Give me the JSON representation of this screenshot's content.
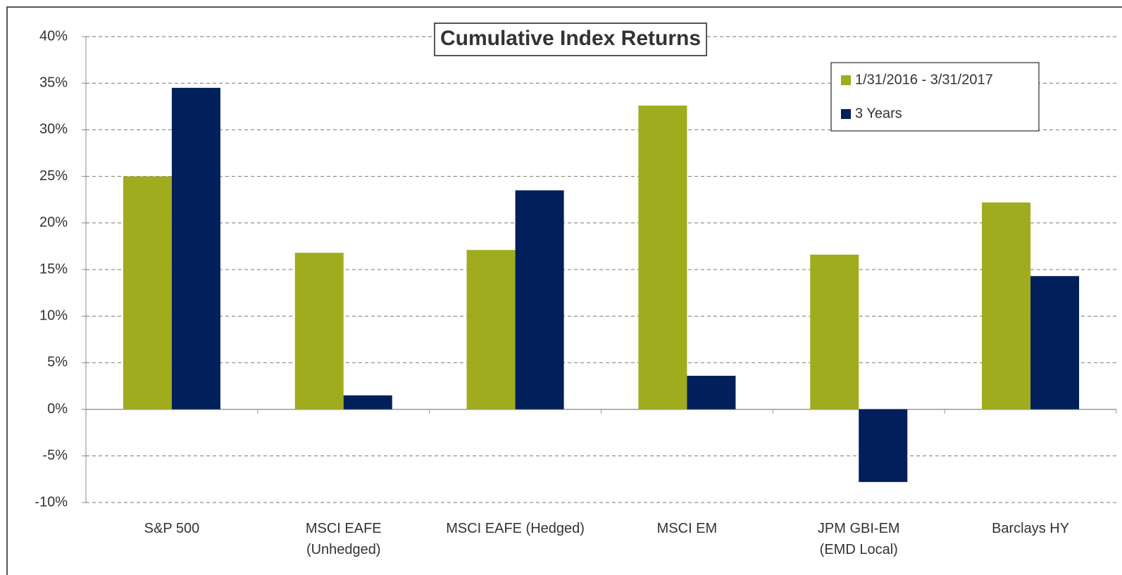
{
  "chart_data": {
    "type": "bar",
    "title": "Cumulative Index Returns",
    "categories": [
      "S&P 500",
      "MSCI EAFE\n(Unhedged)",
      "MSCI EAFE (Hedged)",
      "MSCI EM",
      "JPM GBI-EM\n(EMD Local)",
      "Barclays HY"
    ],
    "series": [
      {
        "name": "1/31/2016 - 3/31/2017",
        "color": "#a0ab1e",
        "values": [
          25.0,
          16.8,
          17.1,
          32.6,
          16.6,
          22.2
        ]
      },
      {
        "name": "3 Years",
        "color": "#001f5b",
        "values": [
          34.5,
          1.5,
          23.5,
          3.6,
          -7.8,
          14.3
        ]
      }
    ],
    "ylim": [
      -10,
      40
    ],
    "yticks": [
      {
        "value": -10,
        "label": "-10%"
      },
      {
        "value": -5,
        "label": "-5%"
      },
      {
        "value": 0,
        "label": "0%"
      },
      {
        "value": 5,
        "label": "5%"
      },
      {
        "value": 10,
        "label": "10%"
      },
      {
        "value": 15,
        "label": "15%"
      },
      {
        "value": 20,
        "label": "20%"
      },
      {
        "value": 25,
        "label": "25%"
      },
      {
        "value": 30,
        "label": "30%"
      },
      {
        "value": 35,
        "label": "35%"
      },
      {
        "value": 40,
        "label": "40%"
      }
    ],
    "grid": true,
    "legend": "upper right"
  }
}
